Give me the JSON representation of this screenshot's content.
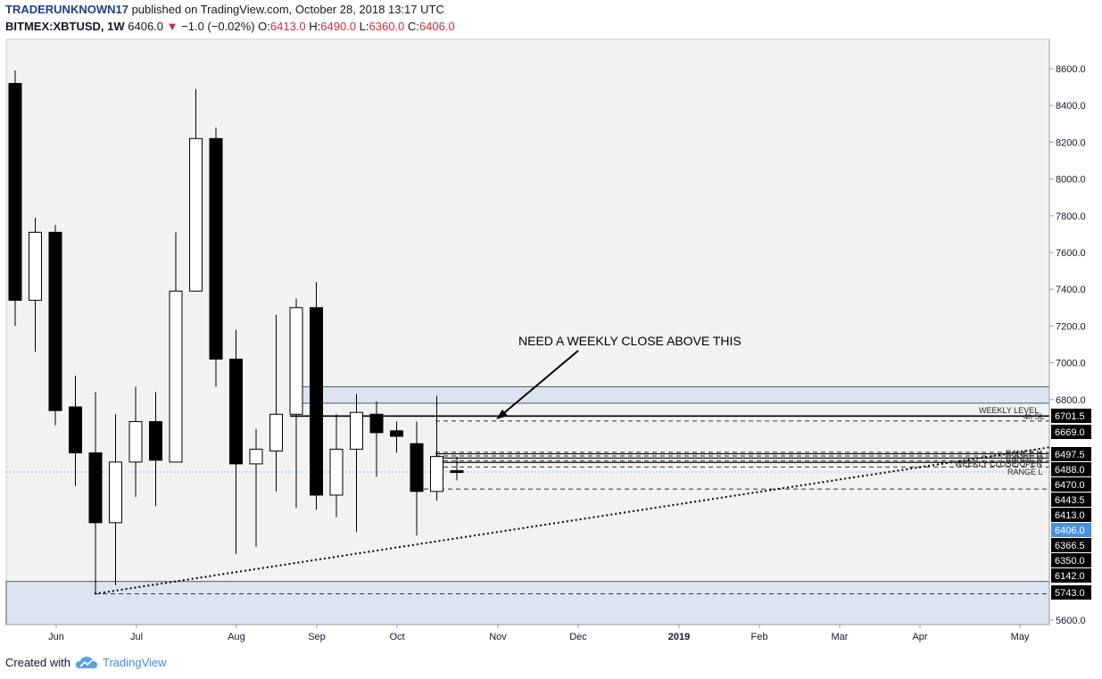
{
  "header": {
    "author": "TRADERUNKNOWN17",
    "published_text": "published on TradingView.com, October 28, 2018 13:17 UTC",
    "symbol": "BITMEX:XBTUSD, 1W",
    "last": "6406.0",
    "change": "−1.0 (−0.02%)",
    "o_label": "O:",
    "o_value": "6413.0",
    "h_label": "H:",
    "h_value": "6490.0",
    "l_label": "L:",
    "l_value": "6360.0",
    "c_label": "C:",
    "c_value": "6406.0"
  },
  "footer": {
    "created_with": "Created with",
    "brand": "TradingView"
  },
  "colors": {
    "plot_bg": "#f2f2f2",
    "zone_fill": "#dbe4f0",
    "candle_down": "#000000",
    "candle_up": "#ffffff",
    "price_tag": "#4a90e2",
    "change_red": "#cc2f3c"
  },
  "chart_data": {
    "type": "candlestick",
    "timeframe": "1W",
    "ylim": [
      5540,
      8700
    ],
    "y_ticks": [
      "8600.0",
      "8400.0",
      "8200.0",
      "8000.0",
      "7800.0",
      "7600.0",
      "7400.0",
      "7200.0",
      "7000.0",
      "6800.0",
      "5600.0"
    ],
    "x_ticks": [
      "Jun",
      "Jul",
      "Aug",
      "Sep",
      "Oct",
      "Nov",
      "Dec",
      "2019",
      "Feb",
      "Mar",
      "Apr",
      "May"
    ],
    "candles": [
      {
        "o": 8520,
        "h": 8590,
        "l": 7200,
        "c": 7340
      },
      {
        "o": 7340,
        "h": 7790,
        "l": 7060,
        "c": 7710
      },
      {
        "o": 7710,
        "h": 7750,
        "l": 6660,
        "c": 6740
      },
      {
        "o": 6760,
        "h": 6930,
        "l": 6330,
        "c": 6510
      },
      {
        "o": 6510,
        "h": 6840,
        "l": 5743,
        "c": 6130
      },
      {
        "o": 6130,
        "h": 6720,
        "l": 5790,
        "c": 6460
      },
      {
        "o": 6460,
        "h": 6870,
        "l": 6270,
        "c": 6680
      },
      {
        "o": 6680,
        "h": 6840,
        "l": 6220,
        "c": 6470
      },
      {
        "o": 6460,
        "h": 7710,
        "l": 6460,
        "c": 7390
      },
      {
        "o": 7390,
        "h": 8490,
        "l": 7390,
        "c": 8220
      },
      {
        "o": 8220,
        "h": 8280,
        "l": 6870,
        "c": 7020
      },
      {
        "o": 7020,
        "h": 7180,
        "l": 5960,
        "c": 6450
      },
      {
        "o": 6450,
        "h": 6640,
        "l": 6000,
        "c": 6530
      },
      {
        "o": 6520,
        "h": 7260,
        "l": 6300,
        "c": 6720
      },
      {
        "o": 6720,
        "h": 7350,
        "l": 6210,
        "c": 7300
      },
      {
        "o": 7300,
        "h": 7440,
        "l": 6200,
        "c": 6280
      },
      {
        "o": 6280,
        "h": 6720,
        "l": 6160,
        "c": 6530
      },
      {
        "o": 6530,
        "h": 6830,
        "l": 6080,
        "c": 6730
      },
      {
        "o": 6720,
        "h": 6790,
        "l": 6380,
        "c": 6620
      },
      {
        "o": 6630,
        "h": 6680,
        "l": 6510,
        "c": 6600
      },
      {
        "o": 6560,
        "h": 6680,
        "l": 6060,
        "c": 6300
      },
      {
        "o": 6300,
        "h": 6820,
        "l": 6250,
        "c": 6490
      },
      {
        "o": 6413,
        "h": 6490,
        "l": 6360,
        "c": 6406
      }
    ],
    "zones": [
      {
        "from": 6780,
        "to": 6870
      },
      {
        "from": 5540,
        "to": 5810
      }
    ],
    "price_labels": [
      "6701.5",
      "6669.0",
      "6497.5",
      "6488.0",
      "6470.0",
      "6443.5",
      "6413.0",
      "6406.0",
      "6366.5",
      "6350.0",
      "6142.0",
      "5743.0"
    ],
    "line_labels": [
      {
        "text": "WEEKLY LEVEL"
      },
      {
        "text": "4h SL"
      },
      {
        "text": "RANGE H"
      },
      {
        "text": "RANGE M"
      },
      {
        "text": "WEEKLY CLOSE/OPEN"
      },
      {
        "text": "RANGE L"
      }
    ],
    "annotation": "NEED A WEEKLY CLOSE ABOVE THIS",
    "trendline": {
      "from_price": 5743,
      "to_price": 6497.5
    }
  }
}
